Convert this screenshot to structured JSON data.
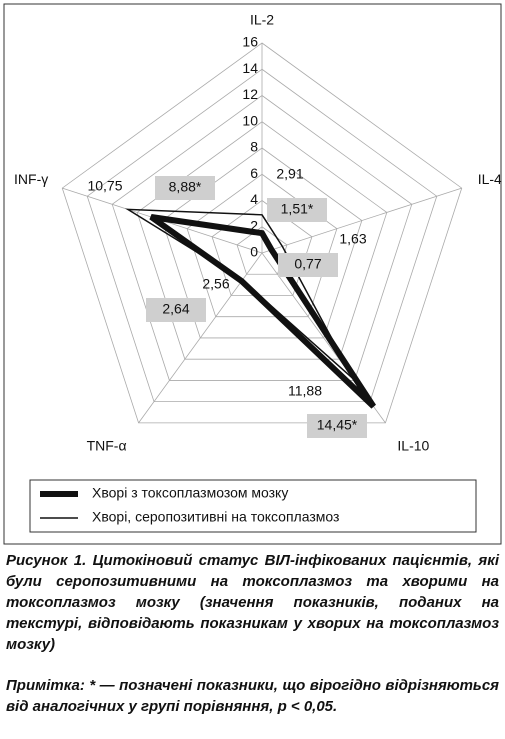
{
  "chart_data": {
    "type": "radar",
    "categories": [
      "IL-2",
      "IL-4",
      "IL-10",
      "TNF-α",
      "INF-γ"
    ],
    "ylim": [
      0,
      16
    ],
    "yticks": [
      0,
      2,
      4,
      6,
      8,
      10,
      12,
      14,
      16
    ],
    "grid": true,
    "series": [
      {
        "name": "Хворі з токсоплазмозом мозку",
        "color": "#111111",
        "line_width": 6,
        "values": [
          1.51,
          0.77,
          14.45,
          2.64,
          8.88
        ],
        "value_labels": [
          "1,51*",
          "0,77",
          "14,45*",
          "2,64",
          "8,88*"
        ]
      },
      {
        "name": "Хворі, серопозитивні на токсоплазмоз",
        "color": "#111111",
        "line_width": 1.5,
        "values": [
          2.91,
          1.63,
          11.88,
          2.56,
          10.75
        ],
        "value_labels": [
          "2,91",
          "1,63",
          "11,88",
          "2,56",
          "10,75"
        ]
      }
    ],
    "caption": "Рисунок 1. Цитокіновий статус ВІЛ-інфікованих пацієнтів, які були серопозитивними на токсоплазмоз та хворими на токсоплазмоз мозку (значення показників, поданих на текстурі, відповідають показникам у хворих на токсоплазмоз мозку)",
    "note": "Примітка: * — позначені показники, що вірогідно відрізняються від аналогічних у групі порівняння, p < 0,05."
  }
}
